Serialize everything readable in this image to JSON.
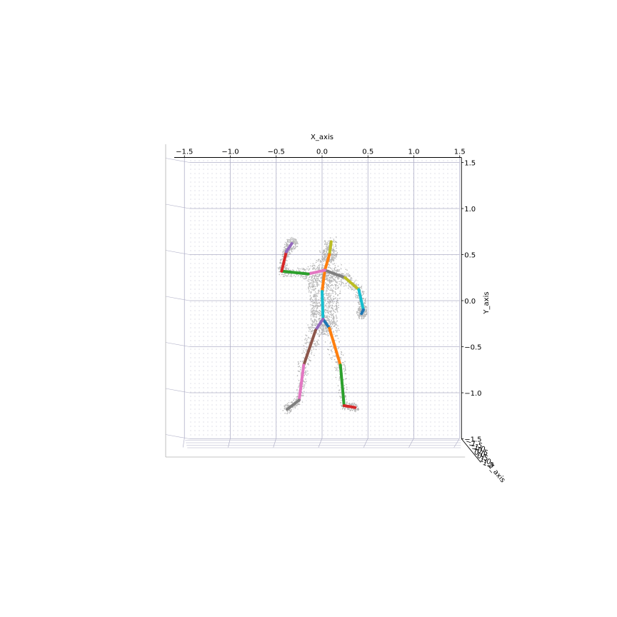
{
  "chart_data": {
    "type": "scatter",
    "projection": "3d-front-view",
    "xlabel": "X_axis",
    "ylabel": "Y_axis",
    "zlabel": "Z_axis",
    "xlim": [
      -1.5,
      1.5
    ],
    "ylim": [
      -1.5,
      1.5
    ],
    "zlim": [
      -1.5,
      1.5
    ],
    "grid": true,
    "x_ticks": [
      "−1.5",
      "−1.0",
      "−0.5",
      "0.0",
      "0.5",
      "1.0",
      "1.5"
    ],
    "y_ticks": [
      "1.5",
      "1.0",
      "0.5",
      "0.0",
      "−0.5",
      "−1.0",
      "−1.5"
    ],
    "z_ticks": [
      "−1.5",
      "−1.0",
      "−0.5",
      "0.0",
      "0.5",
      "1.0",
      "1.5"
    ],
    "x_tick_values": [
      -1.5,
      -1.0,
      -0.5,
      0.0,
      0.5,
      1.0,
      1.5
    ],
    "y_tick_values": [
      1.5,
      1.0,
      0.5,
      0.0,
      -0.5,
      -1.0,
      -1.5
    ],
    "colors": {
      "mesh": "#7f7f7f",
      "grid": "#b0b0c8",
      "pane_dots": "#c9c9d6",
      "axis_line": "#000000"
    },
    "skeleton_joints": {
      "head_top": [
        0.1,
        0.64
      ],
      "head": [
        0.08,
        0.5
      ],
      "neck": [
        0.03,
        0.33
      ],
      "spine": [
        0.0,
        0.1
      ],
      "pelvis": [
        0.01,
        -0.2
      ],
      "l_hip": [
        0.08,
        -0.3
      ],
      "l_knee": [
        0.2,
        -0.7
      ],
      "l_ankle": [
        0.24,
        -1.14
      ],
      "l_toe": [
        0.36,
        -1.16
      ],
      "r_hip": [
        -0.07,
        -0.32
      ],
      "r_knee": [
        -0.2,
        -0.7
      ],
      "r_ankle": [
        -0.25,
        -1.08
      ],
      "r_toe": [
        -0.38,
        -1.18
      ],
      "l_shoulder": [
        0.25,
        0.25
      ],
      "l_elbow": [
        0.4,
        0.12
      ],
      "l_wrist": [
        0.45,
        -0.1
      ],
      "l_hand": [
        0.43,
        -0.14
      ],
      "r_shoulder": [
        -0.15,
        0.29
      ],
      "r_elbow": [
        -0.44,
        0.32
      ],
      "r_wrist": [
        -0.39,
        0.53
      ],
      "r_hand": [
        -0.33,
        0.62
      ]
    },
    "skeleton_bones": [
      {
        "from": "head_top",
        "to": "head",
        "color": "#bcbd22"
      },
      {
        "from": "head",
        "to": "neck",
        "color": "#ff7f0e"
      },
      {
        "from": "neck",
        "to": "spine",
        "color": "#ff7f0e"
      },
      {
        "from": "spine",
        "to": "pelvis",
        "color": "#17becf"
      },
      {
        "from": "pelvis",
        "to": "l_hip",
        "color": "#1f77b4"
      },
      {
        "from": "pelvis",
        "to": "r_hip",
        "color": "#9467bd"
      },
      {
        "from": "l_hip",
        "to": "l_knee",
        "color": "#ff7f0e"
      },
      {
        "from": "l_knee",
        "to": "l_ankle",
        "color": "#2ca02c"
      },
      {
        "from": "l_ankle",
        "to": "l_toe",
        "color": "#d62728"
      },
      {
        "from": "r_hip",
        "to": "r_knee",
        "color": "#8c564b"
      },
      {
        "from": "r_knee",
        "to": "r_ankle",
        "color": "#e377c2"
      },
      {
        "from": "r_ankle",
        "to": "r_toe",
        "color": "#7f7f7f"
      },
      {
        "from": "neck",
        "to": "l_shoulder",
        "color": "#7f7f7f"
      },
      {
        "from": "l_shoulder",
        "to": "l_elbow",
        "color": "#bcbd22"
      },
      {
        "from": "l_elbow",
        "to": "l_wrist",
        "color": "#17becf"
      },
      {
        "from": "l_wrist",
        "to": "l_hand",
        "color": "#1f77b4"
      },
      {
        "from": "neck",
        "to": "r_shoulder",
        "color": "#e377c2"
      },
      {
        "from": "r_shoulder",
        "to": "r_elbow",
        "color": "#2ca02c"
      },
      {
        "from": "r_elbow",
        "to": "r_wrist",
        "color": "#d62728"
      },
      {
        "from": "r_wrist",
        "to": "r_hand",
        "color": "#9467bd"
      }
    ]
  }
}
